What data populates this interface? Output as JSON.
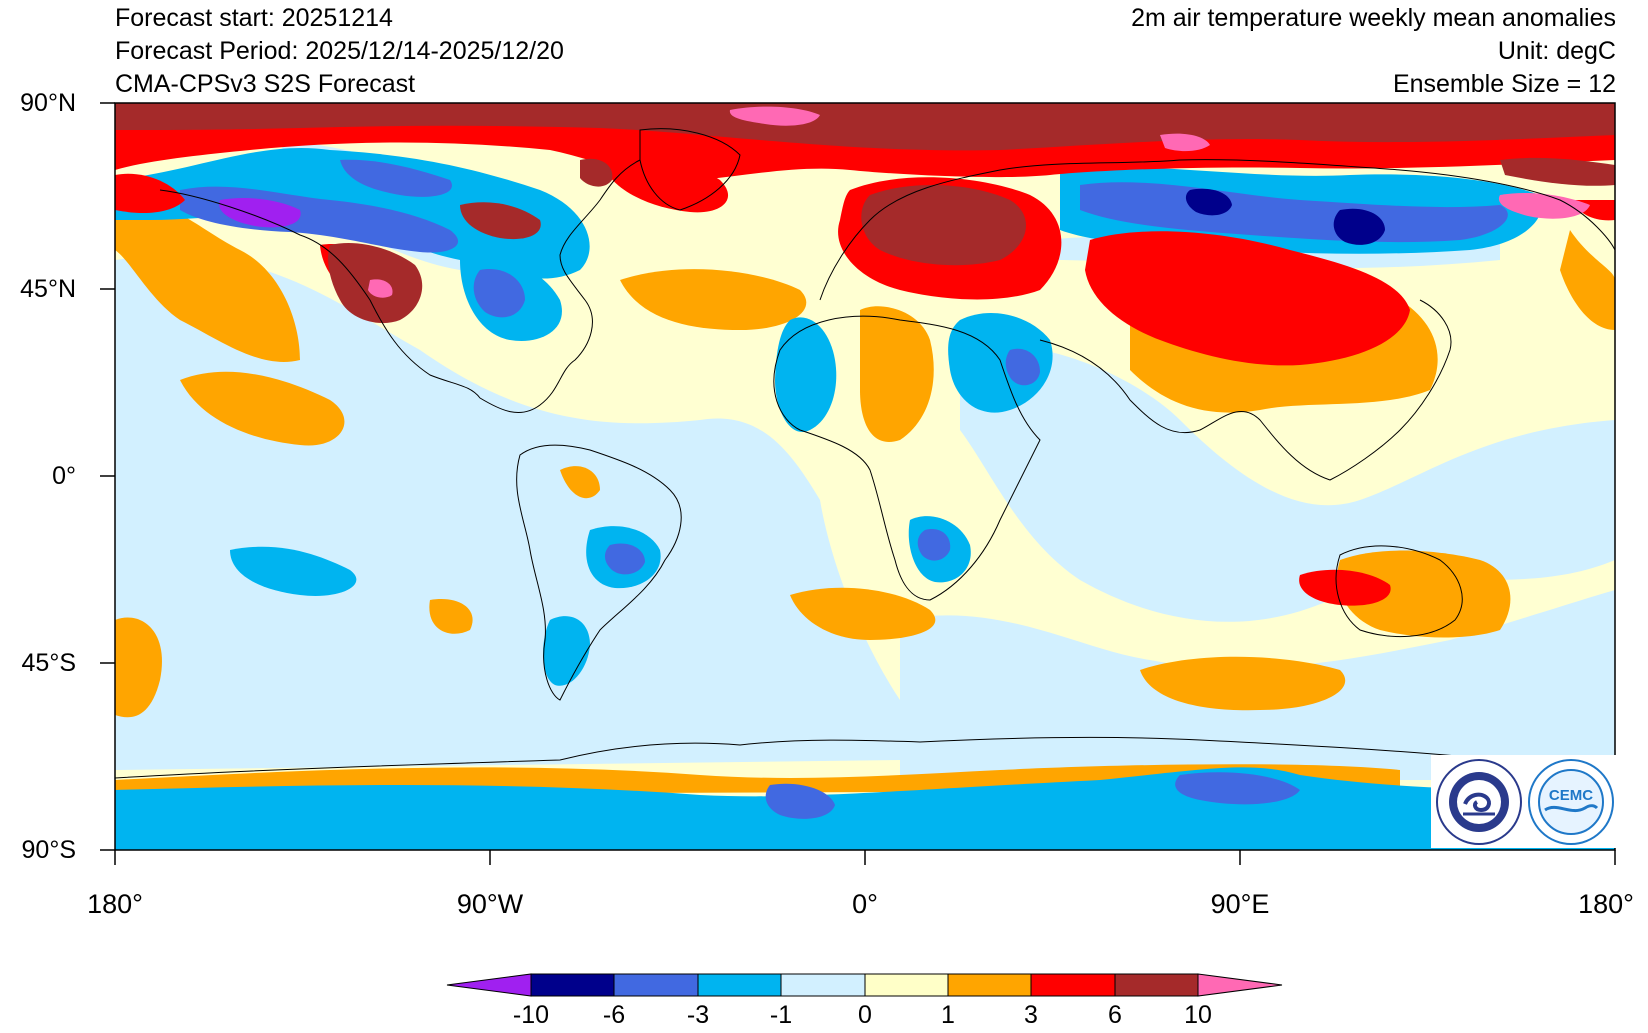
{
  "header": {
    "forecast_start": "Forecast start: 20251214",
    "forecast_period": "Forecast Period: 2025/12/14-2025/12/20",
    "model": "CMA-CPSv3 S2S Forecast",
    "variable": "2m air temperature weekly mean anomalies",
    "unit": "Unit: degC",
    "ensemble": "Ensemble Size = 12"
  },
  "map": {
    "projection": "cylindrical equidistant, global",
    "y_ticks": [
      "90°N",
      "45°N",
      "0°",
      "45°S",
      "90°S"
    ],
    "x_ticks": [
      "180°",
      "90°W",
      "0°",
      "90°E",
      "180°"
    ],
    "coastlines": true,
    "background_fill": "#ffffd2"
  },
  "colorbar": {
    "levels": [
      "-10",
      "-6",
      "-3",
      "-1",
      "0",
      "1",
      "3",
      "6",
      "10"
    ],
    "colors": [
      "#a020f0",
      "#00008b",
      "#4169e1",
      "#00b4f0",
      "#d2f0ff",
      "#ffffc8",
      "#ffa500",
      "#ff0000",
      "#a52a2a",
      "#ff69b4"
    ]
  },
  "logos": [
    {
      "name": "CMA (China Meteorological Administration) seal",
      "icon": "cma-logo"
    },
    {
      "name": "CEMC seal",
      "icon": "cemc-logo",
      "text": "CEMC"
    }
  ]
}
